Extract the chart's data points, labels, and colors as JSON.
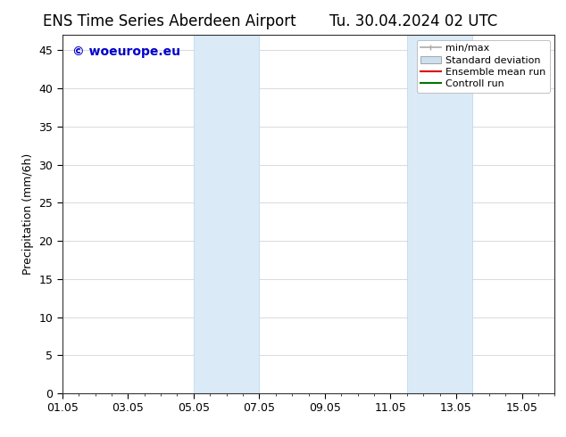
{
  "title_left": "ENS Time Series Aberdeen Airport",
  "title_right": "Tu. 30.04.2024 02 UTC",
  "ylabel": "Precipitation (mm/6h)",
  "watermark": "© woeurope.eu",
  "watermark_color": "#0000cc",
  "ylim": [
    0,
    47
  ],
  "yticks": [
    0,
    5,
    10,
    15,
    20,
    25,
    30,
    35,
    40,
    45
  ],
  "x_min": 0,
  "x_max": 15,
  "xtick_labels": [
    "01.05",
    "03.05",
    "05.05",
    "07.05",
    "09.05",
    "11.05",
    "13.05",
    "15.05"
  ],
  "xtick_positions": [
    0,
    2,
    4,
    6,
    8,
    10,
    12,
    14
  ],
  "shaded_regions": [
    {
      "start": 4.0,
      "end": 6.0
    },
    {
      "start": 10.5,
      "end": 12.5
    }
  ],
  "shaded_color": "#daeaf7",
  "shaded_edge_color": "#b8d4ea",
  "bg_color": "#ffffff",
  "plot_bg_color": "#ffffff",
  "grid_color": "#cccccc",
  "legend_entries": [
    {
      "label": "min/max",
      "color": "#aaaaaa",
      "style": "minmax"
    },
    {
      "label": "Standard deviation",
      "color": "#cce0f0",
      "style": "rect"
    },
    {
      "label": "Ensemble mean run",
      "color": "#dd0000",
      "style": "line"
    },
    {
      "label": "Controll run",
      "color": "#007700",
      "style": "line"
    }
  ],
  "title_fontsize": 12,
  "tick_fontsize": 9,
  "ylabel_fontsize": 9,
  "legend_fontsize": 8,
  "watermark_fontsize": 10
}
